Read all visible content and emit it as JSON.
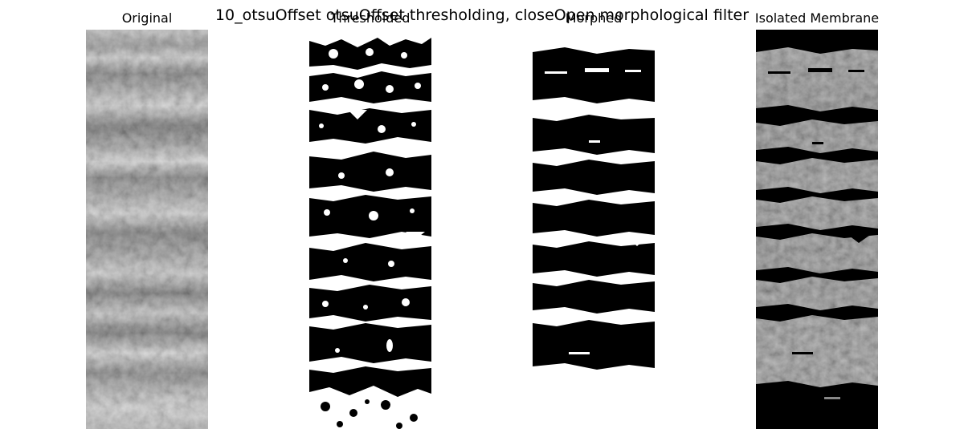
{
  "figure": {
    "suptitle": "10_otsuOffset otsuOffset thresholding, closeOpen morphological filter",
    "panels": [
      {
        "id": "original",
        "title": "Original"
      },
      {
        "id": "thresholded",
        "title": "Thresholded"
      },
      {
        "id": "morphed",
        "title": "Morphed"
      },
      {
        "id": "isolated",
        "title": "Isolated Membrane"
      }
    ]
  }
}
